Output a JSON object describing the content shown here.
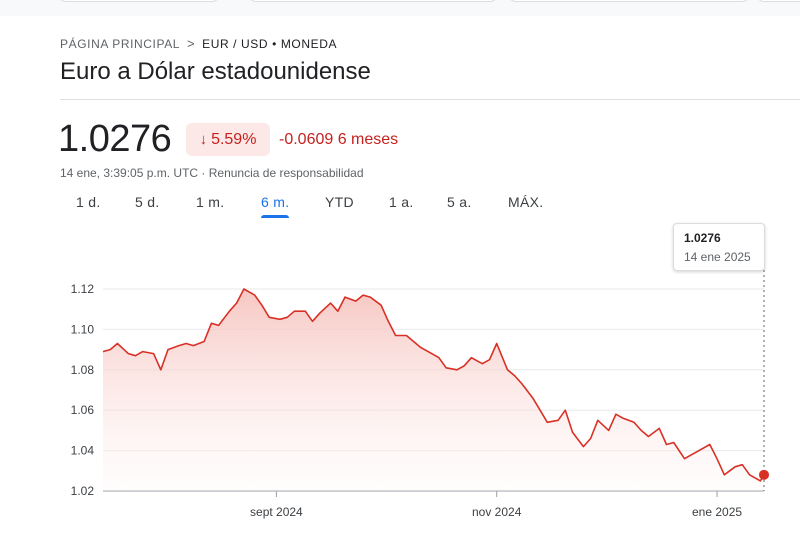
{
  "breadcrumb": {
    "home": "PÁGINA PRINCIPAL",
    "current": "EUR / USD • MONEDA"
  },
  "title": "Euro a Dólar estadounidense",
  "quote": {
    "price": "1.0276",
    "change_percent": "5.59%",
    "change_direction": "down",
    "change_text": "-0.0609 6 meses",
    "timestamp_line": "14 ene, 3:39:05 p.m. UTC · Renuncia de responsabilidad"
  },
  "tabs": [
    {
      "label": "1 d."
    },
    {
      "label": "5 d."
    },
    {
      "label": "1 m."
    },
    {
      "label": "6 m.",
      "active": true
    },
    {
      "label": "YTD"
    },
    {
      "label": "1 a."
    },
    {
      "label": "5 a."
    },
    {
      "label": "MÁX."
    }
  ],
  "tooltip": {
    "value": "1.0276",
    "date": "14 ene 2025"
  },
  "colors": {
    "negative": "#c5221f",
    "line": "#d93025",
    "accent": "#1a73e8",
    "fill_top": "#f6c4bf"
  },
  "chart_data": {
    "type": "area",
    "y_ticks": [
      "1.12",
      "1.10",
      "1.08",
      "1.06",
      "1.04",
      "1.02"
    ],
    "x_ticks": [
      "sept 2024",
      "nov 2024",
      "ene 2025"
    ],
    "ylim": [
      1.02,
      1.12
    ],
    "grid": true,
    "series": [
      {
        "x": [
          "2024-07-15",
          "2024-07-17",
          "2024-07-19",
          "2024-07-22",
          "2024-07-24",
          "2024-07-26",
          "2024-07-29",
          "2024-07-31",
          "2024-08-02",
          "2024-08-05",
          "2024-08-07",
          "2024-08-09",
          "2024-08-12",
          "2024-08-14",
          "2024-08-16",
          "2024-08-19",
          "2024-08-21",
          "2024-08-23",
          "2024-08-26",
          "2024-08-28",
          "2024-08-30",
          "2024-09-02",
          "2024-09-04",
          "2024-09-06",
          "2024-09-09",
          "2024-09-11",
          "2024-09-13",
          "2024-09-16",
          "2024-09-18",
          "2024-09-20",
          "2024-09-23",
          "2024-09-25",
          "2024-09-27",
          "2024-09-30",
          "2024-10-02",
          "2024-10-04",
          "2024-10-07",
          "2024-10-09",
          "2024-10-11",
          "2024-10-14",
          "2024-10-16",
          "2024-10-18",
          "2024-10-21",
          "2024-10-23",
          "2024-10-25",
          "2024-10-28",
          "2024-10-30",
          "2024-11-01",
          "2024-11-04",
          "2024-11-06",
          "2024-11-08",
          "2024-11-11",
          "2024-11-13",
          "2024-11-15",
          "2024-11-18",
          "2024-11-20",
          "2024-11-22",
          "2024-11-25",
          "2024-11-27",
          "2024-11-29",
          "2024-12-02",
          "2024-12-04",
          "2024-12-06",
          "2024-12-09",
          "2024-12-11",
          "2024-12-13",
          "2024-12-16",
          "2024-12-18",
          "2024-12-20",
          "2024-12-23",
          "2024-12-25",
          "2024-12-27",
          "2024-12-30",
          "2025-01-01",
          "2025-01-03",
          "2025-01-06",
          "2025-01-08",
          "2025-01-10",
          "2025-01-13",
          "2025-01-14"
        ],
        "y": [
          1.089,
          1.09,
          1.093,
          1.088,
          1.087,
          1.089,
          1.088,
          1.08,
          1.09,
          1.092,
          1.093,
          1.092,
          1.094,
          1.103,
          1.102,
          1.109,
          1.113,
          1.12,
          1.117,
          1.112,
          1.106,
          1.105,
          1.106,
          1.109,
          1.109,
          1.104,
          1.108,
          1.113,
          1.109,
          1.116,
          1.114,
          1.117,
          1.116,
          1.112,
          1.104,
          1.097,
          1.097,
          1.094,
          1.091,
          1.088,
          1.086,
          1.081,
          1.08,
          1.082,
          1.086,
          1.083,
          1.085,
          1.093,
          1.08,
          1.077,
          1.073,
          1.066,
          1.06,
          1.054,
          1.055,
          1.06,
          1.049,
          1.042,
          1.046,
          1.055,
          1.05,
          1.058,
          1.056,
          1.054,
          1.05,
          1.047,
          1.051,
          1.043,
          1.044,
          1.036,
          1.038,
          1.04,
          1.043,
          1.036,
          1.028,
          1.032,
          1.033,
          1.028,
          1.025,
          1.028
        ]
      }
    ]
  }
}
